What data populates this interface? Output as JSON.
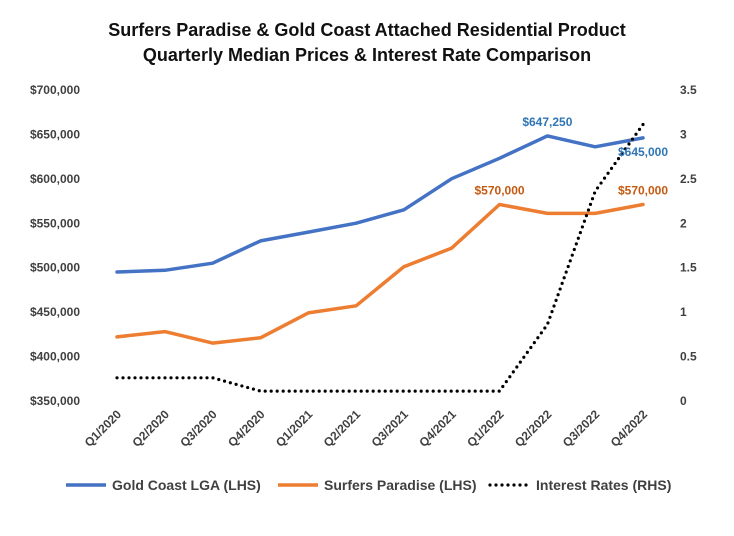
{
  "chart_data": {
    "type": "line",
    "title_line1": "Surfers Paradise & Gold Coast Attached Residential Product",
    "title_line2": "Quarterly Median Prices & Interest Rate Comparison",
    "categories": [
      "Q1/2020",
      "Q2/2020",
      "Q3/2020",
      "Q4/2020",
      "Q1/2021",
      "Q2/2021",
      "Q3/2021",
      "Q4/2021",
      "Q1/2022",
      "Q2/2022",
      "Q3/2022",
      "Q4/2022"
    ],
    "y_left": {
      "min": 350000,
      "max": 700000,
      "step": 50000,
      "ticks": [
        "$350,000",
        "$400,000",
        "$450,000",
        "$500,000",
        "$550,000",
        "$600,000",
        "$650,000",
        "$700,000"
      ]
    },
    "y_right": {
      "min": 0,
      "max": 3.5,
      "step": 0.5,
      "ticks": [
        "0",
        "0.5",
        "1",
        "1.5",
        "2",
        "2.5",
        "3",
        "3.5"
      ]
    },
    "grid": false,
    "legend_position": "bottom",
    "series": [
      {
        "name": "Gold Coast LGA (LHS)",
        "axis": "left",
        "style": "solid",
        "color": "#4472C4",
        "values": [
          494000,
          496000,
          504000,
          529000,
          539000,
          549000,
          564000,
          599000,
          622000,
          647250,
          635000,
          645000
        ]
      },
      {
        "name": "Surfers Paradise (LHS)",
        "axis": "left",
        "style": "solid",
        "color": "#ED7D31",
        "values": [
          421000,
          427000,
          414000,
          420000,
          448000,
          456000,
          500000,
          521000,
          570000,
          560000,
          560000,
          570000
        ]
      },
      {
        "name": "Interest Rates (RHS)",
        "axis": "right",
        "style": "dotted",
        "color": "#000000",
        "values": [
          0.25,
          0.25,
          0.25,
          0.1,
          0.1,
          0.1,
          0.1,
          0.1,
          0.1,
          0.85,
          2.35,
          3.1
        ]
      }
    ],
    "data_labels": [
      {
        "series": 0,
        "index": 9,
        "text": "$647,250",
        "color": "#2E75B6",
        "pos": "above"
      },
      {
        "series": 0,
        "index": 11,
        "text": "$645,000",
        "color": "#2E75B6",
        "pos": "below"
      },
      {
        "series": 1,
        "index": 8,
        "text": "$570,000",
        "color": "#C55A11",
        "pos": "above"
      },
      {
        "series": 1,
        "index": 11,
        "text": "$570,000",
        "color": "#C55A11",
        "pos": "above"
      }
    ]
  }
}
